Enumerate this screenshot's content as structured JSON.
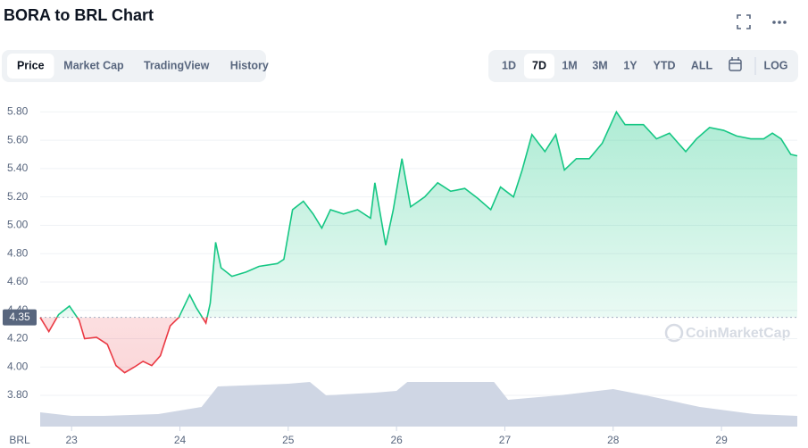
{
  "chart_data": {
    "type": "line",
    "title": "BORA to BRL Chart",
    "tabs": [
      "Price",
      "Market Cap",
      "TradingView",
      "History"
    ],
    "selected_tab": "Price",
    "ranges": [
      "1D",
      "7D",
      "1M",
      "3M",
      "1Y",
      "YTD",
      "ALL"
    ],
    "selected_range": "7D",
    "log_button": "LOG",
    "currency": "BRL",
    "watermark": "CoinMarketCap",
    "baseline": {
      "value": 4.35,
      "label": "4.35"
    },
    "up_color": "#16c784",
    "down_color": "#ea3943",
    "x": [
      22.71,
      22.79,
      22.88,
      22.98,
      23.07,
      23.12,
      23.23,
      23.33,
      23.41,
      23.49,
      23.58,
      23.66,
      23.74,
      23.82,
      23.91,
      23.99,
      24.09,
      24.15,
      24.24,
      24.28,
      24.33,
      24.38,
      24.48,
      24.61,
      24.73,
      24.9,
      24.96,
      25.04,
      25.14,
      25.23,
      25.31,
      25.39,
      25.51,
      25.64,
      25.76,
      25.8,
      25.9,
      25.97,
      26.05,
      26.13,
      26.26,
      26.38,
      26.5,
      26.63,
      26.75,
      26.87,
      26.96,
      27.08,
      27.16,
      27.25,
      27.37,
      27.47,
      27.55,
      27.66,
      27.78,
      27.9,
      28.03,
      28.11,
      28.28,
      28.4,
      28.52,
      28.67,
      28.77,
      28.89,
      29.02,
      29.14,
      29.27,
      29.39,
      29.47,
      29.55,
      29.64,
      29.7
    ],
    "values": [
      4.35,
      4.25,
      4.37,
      4.43,
      4.33,
      4.2,
      4.21,
      4.16,
      4.01,
      3.96,
      4.0,
      4.04,
      4.01,
      4.08,
      4.29,
      4.35,
      4.51,
      4.42,
      4.31,
      4.45,
      4.88,
      4.7,
      4.64,
      4.67,
      4.71,
      4.73,
      4.76,
      5.11,
      5.17,
      5.08,
      4.98,
      5.11,
      5.08,
      5.11,
      5.05,
      5.3,
      4.86,
      5.11,
      5.47,
      5.13,
      5.2,
      5.3,
      5.24,
      5.26,
      5.19,
      5.11,
      5.27,
      5.2,
      5.39,
      5.64,
      5.52,
      5.64,
      5.39,
      5.47,
      5.47,
      5.58,
      5.8,
      5.71,
      5.71,
      5.61,
      5.65,
      5.52,
      5.61,
      5.69,
      5.67,
      5.63,
      5.61,
      5.61,
      5.65,
      5.61,
      5.5,
      5.49
    ],
    "volume": {
      "color": "#cfd6e4",
      "vlim": [
        0,
        100
      ],
      "x": [
        22.71,
        23.0,
        23.3,
        23.8,
        24.2,
        24.35,
        25.0,
        25.2,
        25.35,
        25.8,
        26.0,
        26.1,
        26.9,
        27.03,
        27.5,
        28.0,
        28.3,
        28.8,
        29.3,
        29.7
      ],
      "values": [
        16,
        12,
        12,
        14,
        22,
        45,
        48,
        50,
        35,
        38,
        40,
        50,
        50,
        30,
        35,
        42,
        35,
        22,
        14,
        12
      ]
    },
    "xlim": [
      22.71,
      29.7
    ],
    "xticks": [
      23,
      24,
      25,
      26,
      27,
      28,
      29
    ],
    "ylim": [
      3.63,
      5.96
    ],
    "yticks": [
      {
        "value": 3.8,
        "label": "3.80"
      },
      {
        "value": 4.0,
        "label": "4.00"
      },
      {
        "value": 4.2,
        "label": "4.20"
      },
      {
        "value": 4.4,
        "label": "4.40"
      },
      {
        "value": 4.6,
        "label": "4.60"
      },
      {
        "value": 4.8,
        "label": "4.80"
      },
      {
        "value": 5.0,
        "label": "5.00"
      },
      {
        "value": 5.2,
        "label": "5.20"
      },
      {
        "value": 5.4,
        "label": "5.40"
      },
      {
        "value": 5.6,
        "label": "5.60"
      },
      {
        "value": 5.8,
        "label": "5.80"
      }
    ],
    "grid": true
  }
}
